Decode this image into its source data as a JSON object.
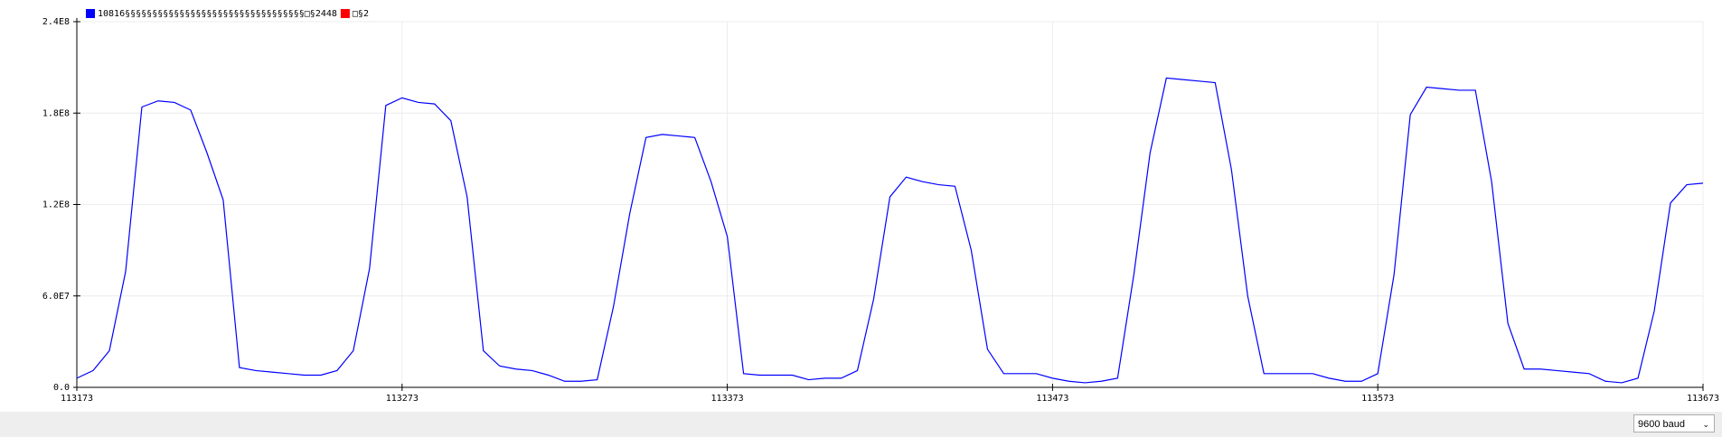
{
  "chart_data": {
    "type": "line",
    "series": [
      {
        "name": "10816§§§§§§§§§§§§§§§§§§§§§§§§§§§§§§§§§□§2448",
        "color": "#0000ff",
        "values": [
          6000000.0,
          11000000.0,
          24000000.0,
          76000000.0,
          184000000.0,
          188000000.0,
          187000000.0,
          182000000.0,
          154000000.0,
          123000000.0,
          13000000.0,
          11000000.0,
          10000000.0,
          9000000.0,
          8000000.0,
          8000000.0,
          11000000.0,
          24000000.0,
          78000000.0,
          185000000.0,
          190000000.0,
          187000000.0,
          186000000.0,
          175000000.0,
          125000000.0,
          24000000.0,
          14000000.0,
          12000000.0,
          11000000.0,
          8000000.0,
          4000000.0,
          4000000.0,
          5000000.0,
          53000000.0,
          114000000.0,
          164000000.0,
          166000000.0,
          165000000.0,
          164000000.0,
          135000000.0,
          99000000.0,
          9000000.0,
          8000000.0,
          8000000.0,
          8000000.0,
          5000000.0,
          6000000.0,
          6000000.0,
          11000000.0,
          58000000.0,
          125000000.0,
          138000000.0,
          135000000.0,
          133000000.0,
          132000000.0,
          90000000.0,
          25000000.0,
          9000000.0,
          9000000.0,
          9000000.0,
          6000000.0,
          4000000.0,
          3000000.0,
          4000000.0,
          6000000.0,
          74000000.0,
          154000000.0,
          203000000.0,
          202000000.0,
          201000000.0,
          200000000.0,
          143000000.0,
          60000000.0,
          9000000.0,
          9000000.0,
          9000000.0,
          9000000.0,
          6000000.0,
          4000000.0,
          4000000.0,
          9000000.0,
          74000000.0,
          179000000.0,
          197000000.0,
          196000000.0,
          195000000.0,
          195000000.0,
          135000000.0,
          42000000.0,
          12000000.0,
          12000000.0,
          11000000.0,
          10000000.0,
          9000000.0,
          4000000.0,
          3000000.0,
          6000000.0,
          50000000.0,
          121000000.0,
          133000000.0,
          134000000.0
        ]
      },
      {
        "name": "□§2",
        "color": "#ff0000",
        "values": [
          null,
          null,
          null,
          null,
          null,
          null,
          null,
          null,
          null,
          null,
          null,
          null,
          null,
          null,
          null,
          null,
          null,
          null,
          null,
          null,
          null,
          null,
          null,
          null,
          null,
          null,
          null,
          null,
          null,
          null,
          null,
          null,
          null,
          null,
          null,
          null,
          null,
          null,
          null,
          null,
          null,
          null,
          null,
          null,
          null,
          null,
          null,
          null,
          null,
          null,
          null,
          null,
          null,
          null,
          null,
          null,
          null,
          null,
          null,
          null,
          null,
          null,
          null,
          null,
          null,
          null,
          null,
          null,
          null,
          null,
          null,
          null,
          null,
          null,
          null,
          null,
          null,
          null,
          null,
          null,
          null,
          null,
          null,
          null,
          null,
          null,
          null,
          null,
          null,
          null,
          null,
          null,
          null,
          null,
          null,
          null,
          null,
          null,
          null,
          null,
          null
        ]
      }
    ],
    "x": [
      113173,
      113178,
      113183,
      113188,
      113193,
      113198,
      113203,
      113208,
      113213,
      113218,
      113223,
      113228,
      113233,
      113238,
      113243,
      113248,
      113253,
      113258,
      113263,
      113268,
      113273,
      113278,
      113283,
      113288,
      113293,
      113298,
      113303,
      113308,
      113313,
      113318,
      113323,
      113328,
      113333,
      113338,
      113343,
      113348,
      113353,
      113358,
      113363,
      113368,
      113373,
      113378,
      113383,
      113388,
      113393,
      113398,
      113403,
      113408,
      113413,
      113418,
      113423,
      113428,
      113433,
      113438,
      113443,
      113448,
      113453,
      113458,
      113463,
      113468,
      113473,
      113478,
      113483,
      113488,
      113493,
      113498,
      113503,
      113508,
      113513,
      113518,
      113523,
      113528,
      113533,
      113538,
      113543,
      113548,
      113553,
      113558,
      113563,
      113568,
      113573,
      113578,
      113583,
      113588,
      113593,
      113598,
      113603,
      113608,
      113613,
      113618,
      113623,
      113628,
      113633,
      113638,
      113643,
      113648,
      113653,
      113658,
      113663,
      113668,
      113673
    ],
    "xlim": [
      113173,
      113673
    ],
    "xticks": [
      113173,
      113273,
      113373,
      113473,
      113573,
      113673
    ],
    "ylim": [
      0,
      240000000
    ],
    "yticks": [
      {
        "value": 0,
        "label": "0.0"
      },
      {
        "value": 60000000,
        "label": "6.0E7"
      },
      {
        "value": 120000000,
        "label": "1.2E8"
      },
      {
        "value": 180000000,
        "label": "1.8E8"
      },
      {
        "value": 240000000,
        "label": "2.4E8"
      }
    ],
    "grid": true
  },
  "controls": {
    "baud": "9600 baud"
  }
}
